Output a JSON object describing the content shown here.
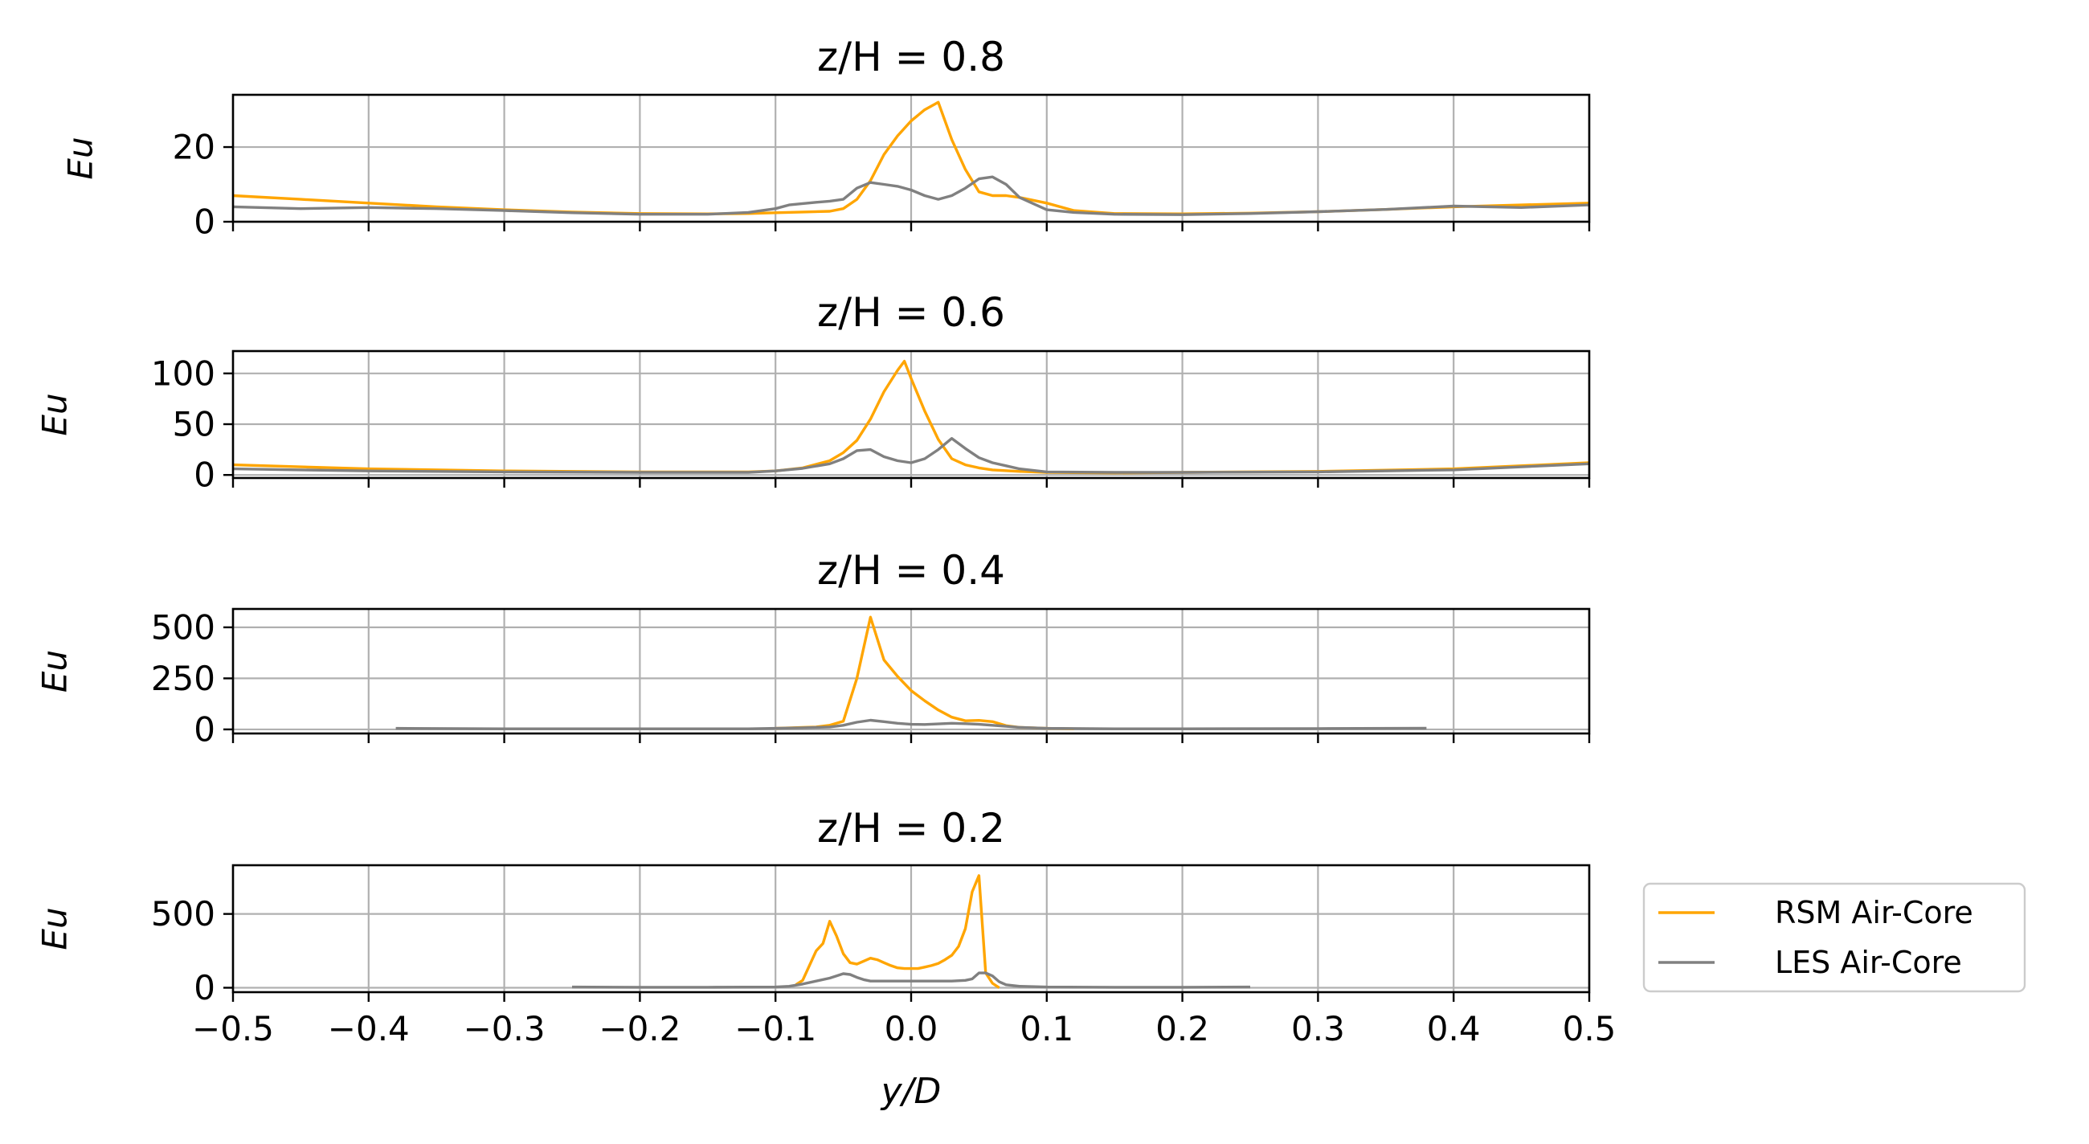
{
  "figure": {
    "xlabel": "y/D",
    "xlim": [
      -0.5,
      0.5
    ],
    "xticks": [
      -0.5,
      -0.4,
      -0.3,
      -0.2,
      -0.1,
      0.0,
      0.1,
      0.2,
      0.3,
      0.4,
      0.5
    ],
    "xtick_labels": [
      "−0.5",
      "−0.4",
      "−0.3",
      "−0.2",
      "−0.1",
      "0.0",
      "0.1",
      "0.2",
      "0.3",
      "0.4",
      "0.5"
    ],
    "grid": true,
    "legend": {
      "position": "right of bottom panel",
      "entries": [
        {
          "label": "RSM Air-Core",
          "color": "#ffa500"
        },
        {
          "label": "LES Air-Core",
          "color": "#808080"
        }
      ]
    }
  },
  "chart_data": [
    {
      "type": "line",
      "title": "z/H = 0.8",
      "ylabel": "Eu",
      "ylim": [
        0,
        34
      ],
      "yticks": [
        0,
        20
      ],
      "ytick_labels": [
        "0",
        "20"
      ],
      "series": [
        {
          "name": "RSM Air-Core",
          "color": "#ffa500",
          "x": [
            -0.5,
            -0.45,
            -0.4,
            -0.35,
            -0.3,
            -0.25,
            -0.2,
            -0.15,
            -0.12,
            -0.1,
            -0.08,
            -0.06,
            -0.05,
            -0.04,
            -0.03,
            -0.02,
            -0.01,
            0.0,
            0.01,
            0.02,
            0.03,
            0.04,
            0.05,
            0.06,
            0.07,
            0.08,
            0.1,
            0.12,
            0.15,
            0.2,
            0.25,
            0.3,
            0.35,
            0.4,
            0.45,
            0.5
          ],
          "y": [
            7,
            6,
            5,
            4,
            3.2,
            2.6,
            2.2,
            2.1,
            2.2,
            2.4,
            2.6,
            2.8,
            3.5,
            6,
            11,
            18,
            23,
            27,
            30,
            32,
            22,
            14,
            8,
            7,
            7,
            6.5,
            5,
            3,
            2.2,
            2.1,
            2.3,
            2.7,
            3.3,
            4,
            4.5,
            5
          ]
        },
        {
          "name": "LES Air-Core",
          "color": "#808080",
          "x": [
            -0.5,
            -0.45,
            -0.4,
            -0.35,
            -0.3,
            -0.25,
            -0.2,
            -0.15,
            -0.12,
            -0.1,
            -0.09,
            -0.07,
            -0.06,
            -0.05,
            -0.04,
            -0.03,
            -0.02,
            -0.01,
            0.0,
            0.01,
            0.02,
            0.03,
            0.04,
            0.05,
            0.06,
            0.07,
            0.08,
            0.1,
            0.12,
            0.15,
            0.2,
            0.25,
            0.3,
            0.35,
            0.4,
            0.45,
            0.5
          ],
          "y": [
            4,
            3.5,
            3.8,
            3.5,
            3,
            2.4,
            2,
            2,
            2.5,
            3.5,
            4.5,
            5.2,
            5.5,
            6,
            9,
            10.5,
            10,
            9.5,
            8.5,
            7,
            6,
            7,
            9,
            11.5,
            12,
            10,
            6.5,
            3.2,
            2.5,
            2,
            1.9,
            2.2,
            2.7,
            3.3,
            4.2,
            3.8,
            4.5
          ]
        }
      ]
    },
    {
      "type": "line",
      "title": "z/H = 0.6",
      "ylabel": "Eu",
      "ylim": [
        -3,
        122
      ],
      "yticks": [
        0,
        50,
        100
      ],
      "ytick_labels": [
        "0",
        "50",
        "100"
      ],
      "series": [
        {
          "name": "RSM Air-Core",
          "color": "#ffa500",
          "x": [
            -0.5,
            -0.4,
            -0.3,
            -0.2,
            -0.12,
            -0.1,
            -0.08,
            -0.06,
            -0.05,
            -0.04,
            -0.03,
            -0.02,
            -0.01,
            -0.005,
            0.0,
            0.01,
            0.02,
            0.03,
            0.04,
            0.05,
            0.06,
            0.08,
            0.1,
            0.15,
            0.2,
            0.3,
            0.4,
            0.5
          ],
          "y": [
            10,
            6,
            4,
            3,
            3,
            4,
            7,
            14,
            22,
            34,
            55,
            82,
            103,
            112,
            95,
            63,
            35,
            16,
            10,
            7,
            5,
            3.5,
            2.5,
            2,
            2.5,
            3.5,
            6,
            12
          ]
        },
        {
          "name": "LES Air-Core",
          "color": "#808080",
          "x": [
            -0.5,
            -0.4,
            -0.3,
            -0.2,
            -0.12,
            -0.1,
            -0.08,
            -0.06,
            -0.05,
            -0.04,
            -0.03,
            -0.02,
            -0.01,
            0.0,
            0.01,
            0.02,
            0.03,
            0.04,
            0.05,
            0.06,
            0.07,
            0.08,
            0.1,
            0.15,
            0.2,
            0.3,
            0.4,
            0.5
          ],
          "y": [
            6,
            4,
            3,
            2.5,
            2.5,
            4,
            6.5,
            11,
            16,
            24,
            25,
            18,
            14,
            12,
            16,
            25,
            36,
            26,
            17,
            12,
            9,
            6,
            3,
            2.5,
            2.5,
            3,
            5,
            11
          ]
        }
      ]
    },
    {
      "type": "line",
      "title": "z/H = 0.4",
      "ylabel": "Eu",
      "ylim": [
        -20,
        590
      ],
      "yticks": [
        0,
        250,
        500
      ],
      "ytick_labels": [
        "0",
        "250",
        "500"
      ],
      "series": [
        {
          "name": "RSM Air-Core",
          "color": "#ffa500",
          "x": [
            -0.1,
            -0.08,
            -0.07,
            -0.06,
            -0.05,
            -0.04,
            -0.03,
            -0.02,
            -0.01,
            0.0,
            0.01,
            0.02,
            0.03,
            0.04,
            0.05,
            0.06,
            0.07,
            0.08,
            0.1,
            0.12
          ],
          "y": [
            5,
            10,
            12,
            20,
            40,
            250,
            550,
            340,
            260,
            190,
            140,
            95,
            60,
            42,
            44,
            38,
            18,
            10,
            5,
            3
          ]
        },
        {
          "name": "LES Air-Core",
          "color": "#808080",
          "x": [
            -0.38,
            -0.3,
            -0.2,
            -0.12,
            -0.1,
            -0.08,
            -0.07,
            -0.06,
            -0.05,
            -0.04,
            -0.03,
            -0.02,
            -0.01,
            0.0,
            0.01,
            0.02,
            0.03,
            0.04,
            0.05,
            0.06,
            0.07,
            0.08,
            0.1,
            0.15,
            0.2,
            0.3,
            0.38
          ],
          "y": [
            5,
            3,
            3,
            3,
            5,
            8,
            10,
            12,
            20,
            35,
            45,
            38,
            30,
            25,
            24,
            27,
            30,
            28,
            25,
            20,
            15,
            10,
            5,
            3,
            3,
            4,
            6
          ]
        }
      ]
    },
    {
      "type": "line",
      "title": "z/H = 0.2",
      "ylabel": "Eu",
      "ylim": [
        -30,
        830
      ],
      "yticks": [
        0,
        500
      ],
      "ytick_labels": [
        "0",
        "500"
      ],
      "series": [
        {
          "name": "RSM Air-Core",
          "color": "#ffa500",
          "x": [
            -0.085,
            -0.08,
            -0.075,
            -0.07,
            -0.065,
            -0.06,
            -0.055,
            -0.05,
            -0.045,
            -0.04,
            -0.035,
            -0.03,
            -0.025,
            -0.02,
            -0.015,
            -0.01,
            -0.005,
            0.0,
            0.005,
            0.01,
            0.015,
            0.02,
            0.025,
            0.03,
            0.035,
            0.04,
            0.045,
            0.05,
            0.055,
            0.06,
            0.065
          ],
          "y": [
            20,
            50,
            150,
            250,
            300,
            450,
            350,
            230,
            170,
            160,
            180,
            200,
            190,
            170,
            150,
            135,
            130,
            130,
            130,
            140,
            150,
            165,
            190,
            220,
            280,
            400,
            650,
            760,
            100,
            30,
            0
          ]
        },
        {
          "name": "LES Air-Core",
          "color": "#808080",
          "x": [
            -0.25,
            -0.2,
            -0.15,
            -0.1,
            -0.09,
            -0.08,
            -0.07,
            -0.06,
            -0.055,
            -0.05,
            -0.045,
            -0.04,
            -0.035,
            -0.03,
            -0.02,
            -0.01,
            0.0,
            0.01,
            0.02,
            0.03,
            0.04,
            0.045,
            0.05,
            0.055,
            0.06,
            0.065,
            0.07,
            0.08,
            0.1,
            0.15,
            0.2,
            0.25
          ],
          "y": [
            5,
            3,
            3,
            5,
            10,
            25,
            45,
            65,
            80,
            95,
            90,
            70,
            55,
            45,
            45,
            45,
            45,
            45,
            45,
            45,
            50,
            60,
            100,
            100,
            80,
            40,
            20,
            10,
            5,
            3,
            3,
            5
          ]
        }
      ]
    }
  ]
}
